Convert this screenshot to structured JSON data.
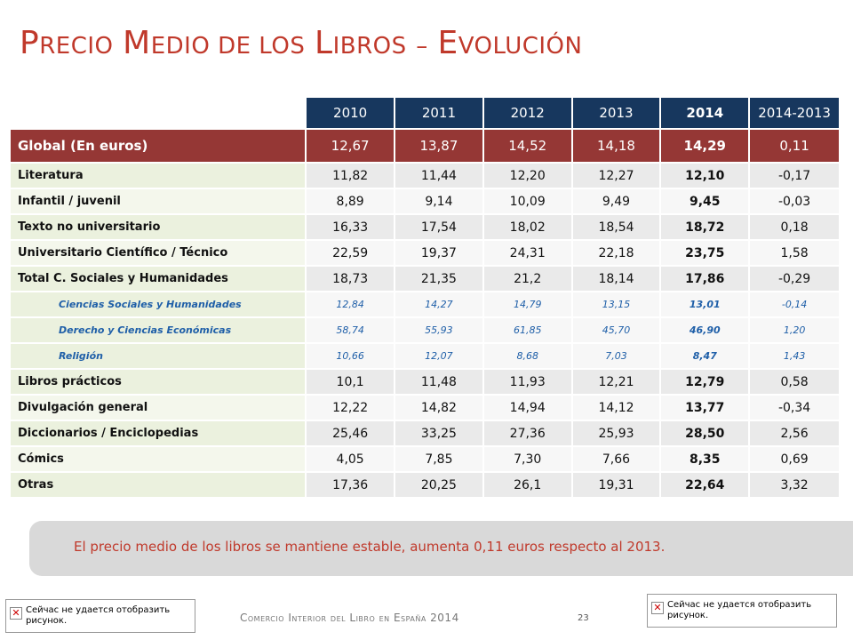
{
  "title": {
    "p1_big": "P",
    "p1_small": "RECIO",
    "p2_big": "M",
    "p2_small": "EDIO DE LOS",
    "p3_big": "L",
    "p3_small": "IBROS",
    "dash": "–",
    "p4_big": "E",
    "p4_small": "VOLUCIÓN"
  },
  "table": {
    "headers": [
      "2010",
      "2011",
      "2012",
      "2013",
      "2014",
      "2014-2013"
    ],
    "global": {
      "label": "Global (En euros)",
      "values": [
        "12,67",
        "13,87",
        "14,52",
        "14,18",
        "14,29",
        "0,11"
      ]
    },
    "rows": [
      {
        "label": "Literatura",
        "values": [
          "11,82",
          "11,44",
          "12,20",
          "12,27",
          "12,10",
          "-0,17"
        ]
      },
      {
        "label": "Infantil / juvenil",
        "values": [
          "8,89",
          "9,14",
          "10,09",
          "9,49",
          "9,45",
          "-0,03"
        ]
      },
      {
        "label": "Texto no universitario",
        "values": [
          "16,33",
          "17,54",
          "18,02",
          "18,54",
          "18,72",
          "0,18"
        ]
      },
      {
        "label": "Universitario Científico / Técnico",
        "values": [
          "22,59",
          "19,37",
          "24,31",
          "22,18",
          "23,75",
          "1,58"
        ]
      },
      {
        "label": "Total C. Sociales y Humanidades",
        "values": [
          "18,73",
          "21,35",
          "21,2",
          "18,14",
          "17,86",
          "-0,29"
        ]
      },
      {
        "label": "Ciencias Sociales y Humanidades",
        "values": [
          "12,84",
          "14,27",
          "14,79",
          "13,15",
          "13,01",
          "-0,14"
        ]
      },
      {
        "label": "Derecho y Ciencias Económicas",
        "values": [
          "58,74",
          "55,93",
          "61,85",
          "45,70",
          "46,90",
          "1,20"
        ]
      },
      {
        "label": "Religión",
        "values": [
          "10,66",
          "12,07",
          "8,68",
          "7,03",
          "8,47",
          "1,43"
        ]
      },
      {
        "label": "Libros prácticos",
        "values": [
          "10,1",
          "11,48",
          "11,93",
          "12,21",
          "12,79",
          "0,58"
        ]
      },
      {
        "label": "Divulgación general",
        "values": [
          "12,22",
          "14,82",
          "14,94",
          "14,12",
          "13,77",
          "-0,34"
        ]
      },
      {
        "label": "Diccionarios / Enciclopedias",
        "values": [
          "25,46",
          "33,25",
          "27,36",
          "25,93",
          "28,50",
          "2,56"
        ]
      },
      {
        "label": "Cómics",
        "values": [
          "4,05",
          "7,85",
          "7,30",
          "7,66",
          "8,35",
          "0,69"
        ]
      },
      {
        "label": "Otras",
        "values": [
          "17,36",
          "20,25",
          "26,1",
          "19,31",
          "22,64",
          "3,32"
        ]
      }
    ]
  },
  "note": "El precio medio de los libros se mantiene estable, aumenta 0,11 euros respecto al 2013.",
  "placeholder_text": "Сейчас не удается отобразить рисунок.",
  "footer": "Comercio Interior del Libro en España 2014",
  "page_number": "23",
  "colors": {
    "title": "#c0392b",
    "header": "#17375e",
    "global_row": "#953735",
    "sub_text": "#1f5fa8"
  }
}
